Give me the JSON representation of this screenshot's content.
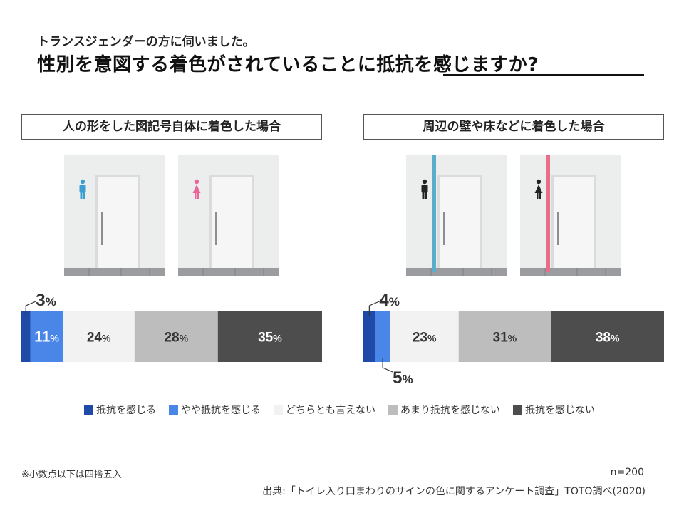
{
  "subtitle": "トランスジェンダーの方に伺いました。",
  "title": "性別を意図する着色がされていることに抵抗を感じますか?",
  "sections": [
    {
      "label": "人の形をした図記号自体に着色した場合"
    },
    {
      "label": "周辺の壁や床などに着色した場合"
    }
  ],
  "colors": {
    "strong": "#1f4aa8",
    "somewhat": "#4a86e8",
    "neutral": "#f2f2f2",
    "not_much": "#bdbdbd",
    "none": "#4d4d4d",
    "male_sign": "#3a9fd0",
    "female_sign": "#e8679a",
    "wall_blue_stripe": "#5aaecc",
    "wall_pink_stripe": "#e86e8a"
  },
  "chart_data": [
    {
      "type": "bar",
      "orientation": "horizontal-stacked-100",
      "categories": [
        "抵抗を感じる",
        "やや抵抗を感じる",
        "どちらとも言えない",
        "あまり抵抗を感じない",
        "抵抗を感じない"
      ],
      "values": [
        3,
        11,
        24,
        28,
        35
      ],
      "labels": [
        "3%",
        "11%",
        "24%",
        "28%",
        "35%"
      ]
    },
    {
      "type": "bar",
      "orientation": "horizontal-stacked-100",
      "categories": [
        "抵抗を感じる",
        "やや抵抗を感じる",
        "どちらとも言えない",
        "あまり抵抗を感じない",
        "抵抗を感じない"
      ],
      "values": [
        4,
        5,
        23,
        31,
        38
      ],
      "labels": [
        "4%",
        "5%",
        "23%",
        "31%",
        "38%"
      ]
    }
  ],
  "legend": [
    {
      "label": "抵抗を感じる",
      "color": "#1f4aa8"
    },
    {
      "label": "やや抵抗を感じる",
      "color": "#4a86e8"
    },
    {
      "label": "どちらとも言えない",
      "color": "#f2f2f2"
    },
    {
      "label": "あまり抵抗を感じない",
      "color": "#bdbdbd"
    },
    {
      "label": "抵抗を感じない",
      "color": "#4d4d4d"
    }
  ],
  "note": "※小数点以下は四捨五入",
  "sample": "n=200",
  "source": "出典:「トイレ入り口まわりのサインの色に関するアンケート調査」TOTO調べ(2020)"
}
